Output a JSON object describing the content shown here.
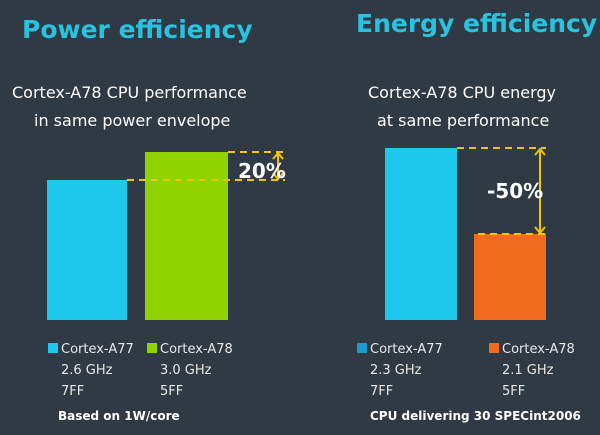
{
  "colors": {
    "background": "#2f3a44",
    "title": "#29c3e0",
    "annotation": "#f5c400"
  },
  "chart_data": [
    {
      "type": "bar",
      "title": "Power efficiency",
      "subtitle": [
        "Cortex-A78 CPU performance",
        "in same power envelope"
      ],
      "categories": [
        "Cortex-A77",
        "Cortex-A78"
      ],
      "legend": [
        {
          "name": "Cortex-A77",
          "freq": "2.6 GHz",
          "node": "7FF",
          "color": "#1ec8ec"
        },
        {
          "name": "Cortex-A78",
          "freq": "3.0 GHz",
          "node": "5FF",
          "color": "#8fd400"
        }
      ],
      "values": [
        100,
        120
      ],
      "ylim": [
        0,
        125
      ],
      "annotation": "20%",
      "note": "Based on 1W/core"
    },
    {
      "type": "bar",
      "title": "Energy efficiency",
      "subtitle": [
        "Cortex-A78 CPU energy",
        "at same performance"
      ],
      "categories": [
        "Cortex-A77",
        "Cortex-A78"
      ],
      "legend": [
        {
          "name": "Cortex-A77",
          "freq": "2.3 GHz",
          "node": "7FF",
          "color": "#1ec8ec",
          "legend_color": "#1b9ad0"
        },
        {
          "name": "Cortex-A78",
          "freq": "2.1 GHz",
          "node": "5FF",
          "color": "#f26a1b"
        }
      ],
      "values": [
        100,
        50
      ],
      "ylim": [
        0,
        100
      ],
      "annotation": "-50%",
      "note": "CPU delivering 30 SPECint2006"
    }
  ]
}
